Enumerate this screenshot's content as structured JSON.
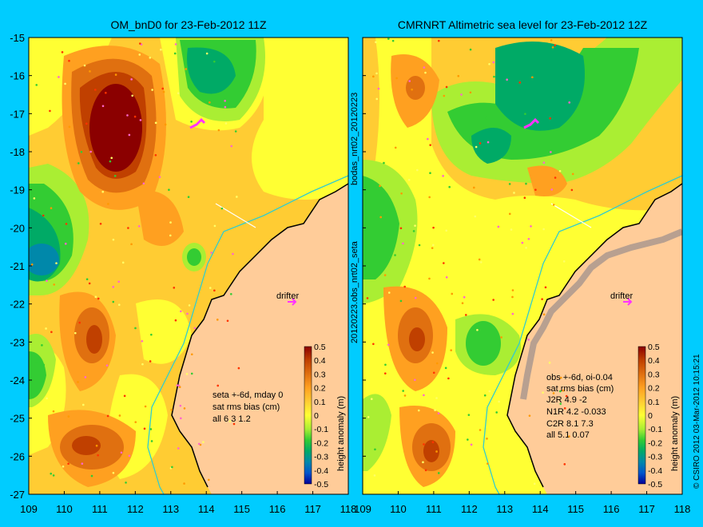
{
  "colors": {
    "background": "#00ccff",
    "land": "#ffcc99",
    "coast_band": "#b8a090",
    "isobath": "#33cccc",
    "drifter": "#ff33ff"
  },
  "colorbar": {
    "ticks": [
      "0.5",
      "0.4",
      "0.3",
      "0.2",
      "0.1",
      "0",
      "-0.1",
      "-0.2",
      "-0.3",
      "-0.4",
      "-0.5"
    ],
    "stops": [
      "#8b0000",
      "#c04000",
      "#e07010",
      "#ffa020",
      "#ffcc33",
      "#ffff33",
      "#aaee33",
      "#33cc33",
      "#00aa66",
      "#0088aa",
      "#0055cc",
      "#000099"
    ],
    "label": "height anomaly (m)"
  },
  "axes": {
    "y_ticks": [
      "-15",
      "-16",
      "-17",
      "-18",
      "-19",
      "-20",
      "-21",
      "-22",
      "-23",
      "-24",
      "-25",
      "-26",
      "-27"
    ],
    "x_ticks": [
      "109",
      "110",
      "111",
      "112",
      "113",
      "114",
      "115",
      "116",
      "117",
      "118"
    ],
    "lon_range": [
      109,
      118
    ],
    "lat_range": [
      -27,
      -15
    ]
  },
  "left_panel": {
    "title": "OM_bnD0 for 23-Feb-2012 11Z",
    "drifter_label": "drifter",
    "stats": [
      "seta +-6d, mday 0",
      "sat rms bias (cm)",
      "all 6.3 1.2"
    ]
  },
  "right_panel": {
    "title": "CMRNRT Altimetric sea level  for 23-Feb-2012 12Z",
    "drifter_label": "drifter",
    "stats": [
      "obs +-6d, oi-0.04",
      "sat rms bias (cm)",
      "J2R   4.9  -2",
      "N1R   4.2 -0.033",
      "C2R   8.1  7.3",
      "all 5.1  0.07"
    ]
  },
  "side_labels": {
    "top": "bodas_nrt02_20120223",
    "bottom": "20120223.obs_nrt02_seta"
  },
  "copyright": "© CSIRO 2012   03-Mar-2012 10:15:21"
}
